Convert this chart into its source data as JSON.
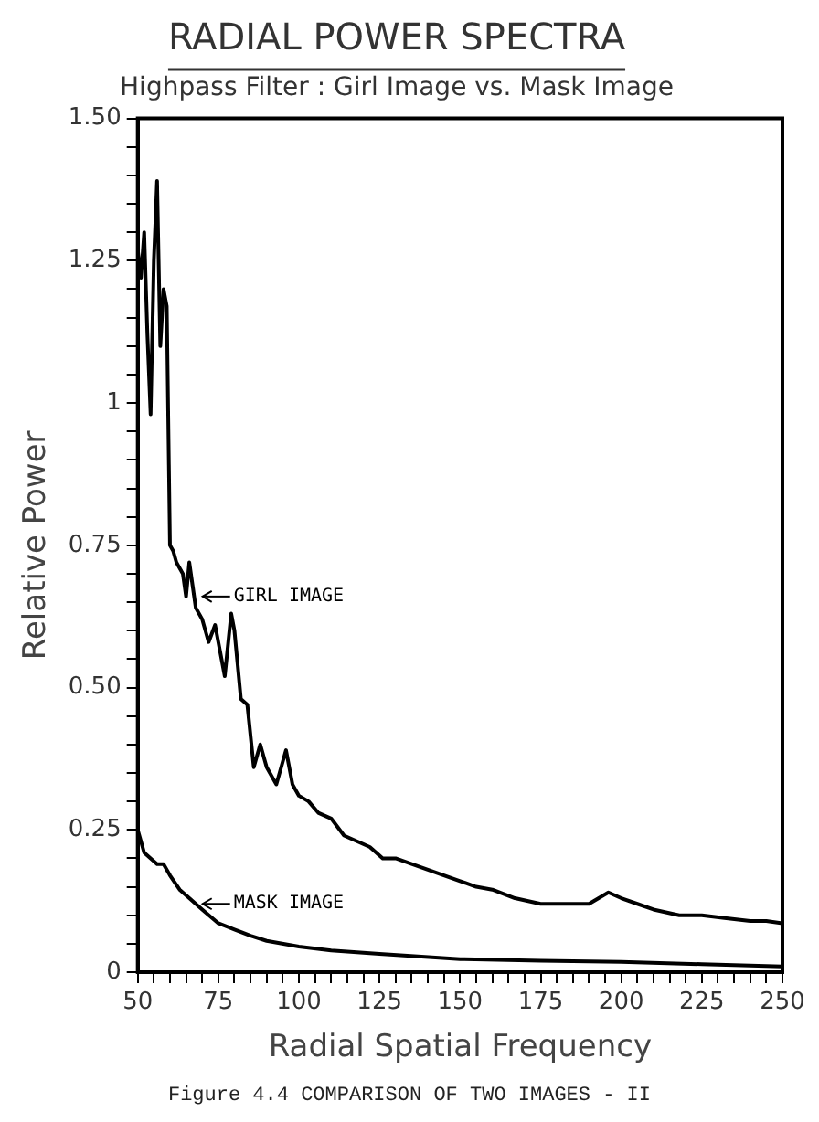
{
  "chart_data": {
    "type": "line",
    "title": "RADIAL POWER SPECTRA",
    "subtitle": "Highpass Filter : Girl Image vs. Mask Image",
    "xlabel": "Radial Spatial Frequency",
    "ylabel": "Relative Power",
    "xlim": [
      50,
      250
    ],
    "ylim": [
      0,
      1.5
    ],
    "xticks": [
      50,
      {
        "value": 55,
        "label": null
      },
      {
        "value": 60,
        "label": null
      },
      {
        "value": 65,
        "label": null
      },
      {
        "value": 70,
        "label": null
      },
      75,
      {
        "value": 80,
        "label": null
      },
      {
        "value": 85,
        "label": null
      },
      {
        "value": 90,
        "label": null
      },
      {
        "value": 95,
        "label": null
      },
      100,
      {
        "value": 105,
        "label": null
      },
      {
        "value": 110,
        "label": null
      },
      {
        "value": 115,
        "label": null
      },
      {
        "value": 120,
        "label": null
      },
      125,
      {
        "value": 130,
        "label": null
      },
      {
        "value": 135,
        "label": null
      },
      {
        "value": 140,
        "label": null
      },
      {
        "value": 145,
        "label": null
      },
      150,
      {
        "value": 155,
        "label": null
      },
      {
        "value": 160,
        "label": null
      },
      {
        "value": 165,
        "label": null
      },
      {
        "value": 170,
        "label": null
      },
      175,
      {
        "value": 180,
        "label": null
      },
      {
        "value": 185,
        "label": null
      },
      {
        "value": 190,
        "label": null
      },
      {
        "value": 195,
        "label": null
      },
      200,
      {
        "value": 205,
        "label": null
      },
      {
        "value": 210,
        "label": null
      },
      {
        "value": 215,
        "label": null
      },
      {
        "value": 220,
        "label": null
      },
      225,
      {
        "value": 230,
        "label": null
      },
      {
        "value": 235,
        "label": null
      },
      {
        "value": 240,
        "label": null
      },
      {
        "value": 245,
        "label": null
      },
      250
    ],
    "yticks": [
      0,
      {
        "value": 0.05,
        "label": null
      },
      {
        "value": 0.1,
        "label": null
      },
      {
        "value": 0.15,
        "label": null
      },
      {
        "value": 0.2,
        "label": null
      },
      0.25,
      {
        "value": 0.3,
        "label": null
      },
      {
        "value": 0.35,
        "label": null
      },
      {
        "value": 0.4,
        "label": null
      },
      {
        "value": 0.45,
        "label": null
      },
      {
        "value": 0.5,
        "label": "0.50"
      },
      {
        "value": 0.55,
        "label": null
      },
      {
        "value": 0.6,
        "label": null
      },
      {
        "value": 0.65,
        "label": null
      },
      {
        "value": 0.7,
        "label": null
      },
      0.75,
      {
        "value": 0.8,
        "label": null
      },
      {
        "value": 0.85,
        "label": null
      },
      {
        "value": 0.9,
        "label": null
      },
      {
        "value": 0.95,
        "label": null
      },
      1,
      {
        "value": 1.05,
        "label": null
      },
      {
        "value": 1.1,
        "label": null
      },
      {
        "value": 1.15,
        "label": null
      },
      {
        "value": 1.2,
        "label": null
      },
      1.25,
      {
        "value": 1.3,
        "label": null
      },
      {
        "value": 1.35,
        "label": null
      },
      {
        "value": 1.4,
        "label": null
      },
      {
        "value": 1.45,
        "label": null
      },
      {
        "value": 1.5,
        "label": "1.50"
      }
    ],
    "grid": false,
    "legend": false,
    "marker": "none",
    "line_style": "solid",
    "series": [
      {
        "color": "#000000",
        "x": [
          50,
          51,
          52,
          53,
          54,
          55,
          56,
          57,
          58,
          59,
          60,
          61,
          62,
          64,
          65,
          66,
          67,
          68,
          70,
          72,
          74,
          76,
          77,
          79,
          80,
          82,
          84,
          86,
          88,
          90,
          93,
          96,
          98,
          100,
          103,
          106,
          110,
          114,
          118,
          122,
          126,
          130,
          135,
          140,
          145,
          150,
          155,
          160,
          167,
          175,
          182,
          190,
          196,
          200,
          205,
          210,
          218,
          225,
          232,
          240,
          245,
          250
        ],
        "values": [
          1.27,
          1.22,
          1.3,
          1.12,
          0.98,
          1.25,
          1.39,
          1.1,
          1.2,
          1.17,
          0.75,
          0.74,
          0.72,
          0.7,
          0.66,
          0.72,
          0.68,
          0.64,
          0.62,
          0.58,
          0.61,
          0.55,
          0.52,
          0.63,
          0.6,
          0.48,
          0.47,
          0.36,
          0.4,
          0.36,
          0.33,
          0.39,
          0.33,
          0.31,
          0.3,
          0.28,
          0.27,
          0.24,
          0.23,
          0.22,
          0.2,
          0.2,
          0.19,
          0.18,
          0.17,
          0.16,
          0.15,
          0.145,
          0.13,
          0.12,
          0.12,
          0.12,
          0.14,
          0.13,
          0.12,
          0.11,
          0.1,
          0.1,
          0.095,
          0.09,
          0.09,
          0.086
        ]
      },
      {
        "color": "#000000",
        "x": [
          50,
          52,
          54,
          56,
          58,
          60,
          63,
          66,
          70,
          75,
          80,
          85,
          90,
          100,
          110,
          125,
          150,
          175,
          200,
          225,
          250
        ],
        "values": [
          0.25,
          0.21,
          0.2,
          0.19,
          0.19,
          0.17,
          0.145,
          0.13,
          0.11,
          0.086,
          0.075,
          0.064,
          0.055,
          0.045,
          0.038,
          0.032,
          0.023,
          0.02,
          0.018,
          0.014,
          0.01
        ]
      }
    ],
    "annotations": [
      {
        "text": "GIRL IMAGE",
        "x": 69,
        "y": 0.66
      },
      {
        "text": "MASK IMAGE",
        "x": 69,
        "y": 0.12
      },
      "Figure 4.4 COMPARISON OF TWO IMAGES - II"
    ]
  }
}
